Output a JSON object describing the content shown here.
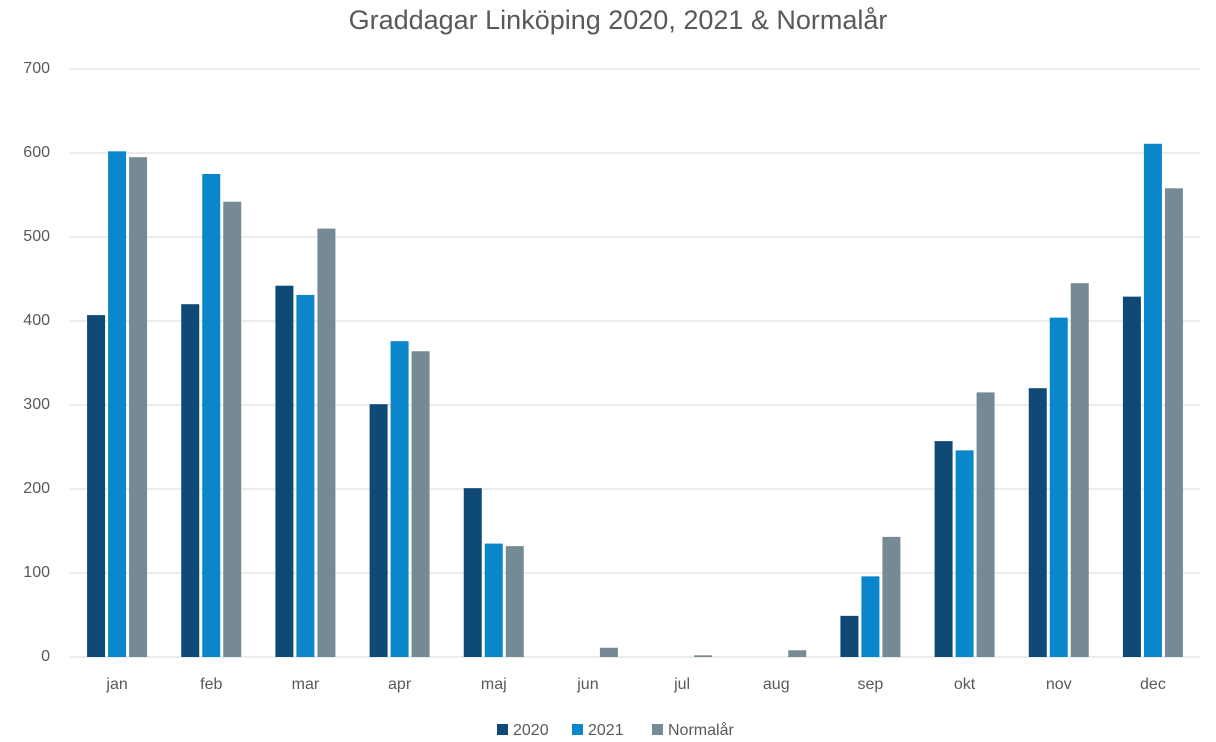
{
  "chart_data": {
    "type": "bar",
    "title": "Graddagar Linköping 2020, 2021 & Normalår",
    "categories": [
      "jan",
      "feb",
      "mar",
      "apr",
      "maj",
      "jun",
      "jul",
      "aug",
      "sep",
      "okt",
      "nov",
      "dec"
    ],
    "series": [
      {
        "name": "2020",
        "color": "#0e4a75",
        "values": [
          407,
          420,
          442,
          301,
          201,
          0,
          0,
          0,
          49,
          257,
          320,
          429
        ]
      },
      {
        "name": "2021",
        "color": "#0a87cb",
        "values": [
          602,
          575,
          431,
          376,
          135,
          0,
          0,
          0,
          96,
          246,
          404,
          611
        ]
      },
      {
        "name": "Normalår",
        "color": "#758a94",
        "values": [
          595,
          542,
          510,
          364,
          132,
          11,
          2,
          8,
          143,
          315,
          445,
          558
        ]
      }
    ],
    "ylim": [
      0,
      700
    ],
    "yticks": [
      0,
      100,
      200,
      300,
      400,
      500,
      600,
      700
    ],
    "grid": true,
    "legend": "bottom"
  }
}
